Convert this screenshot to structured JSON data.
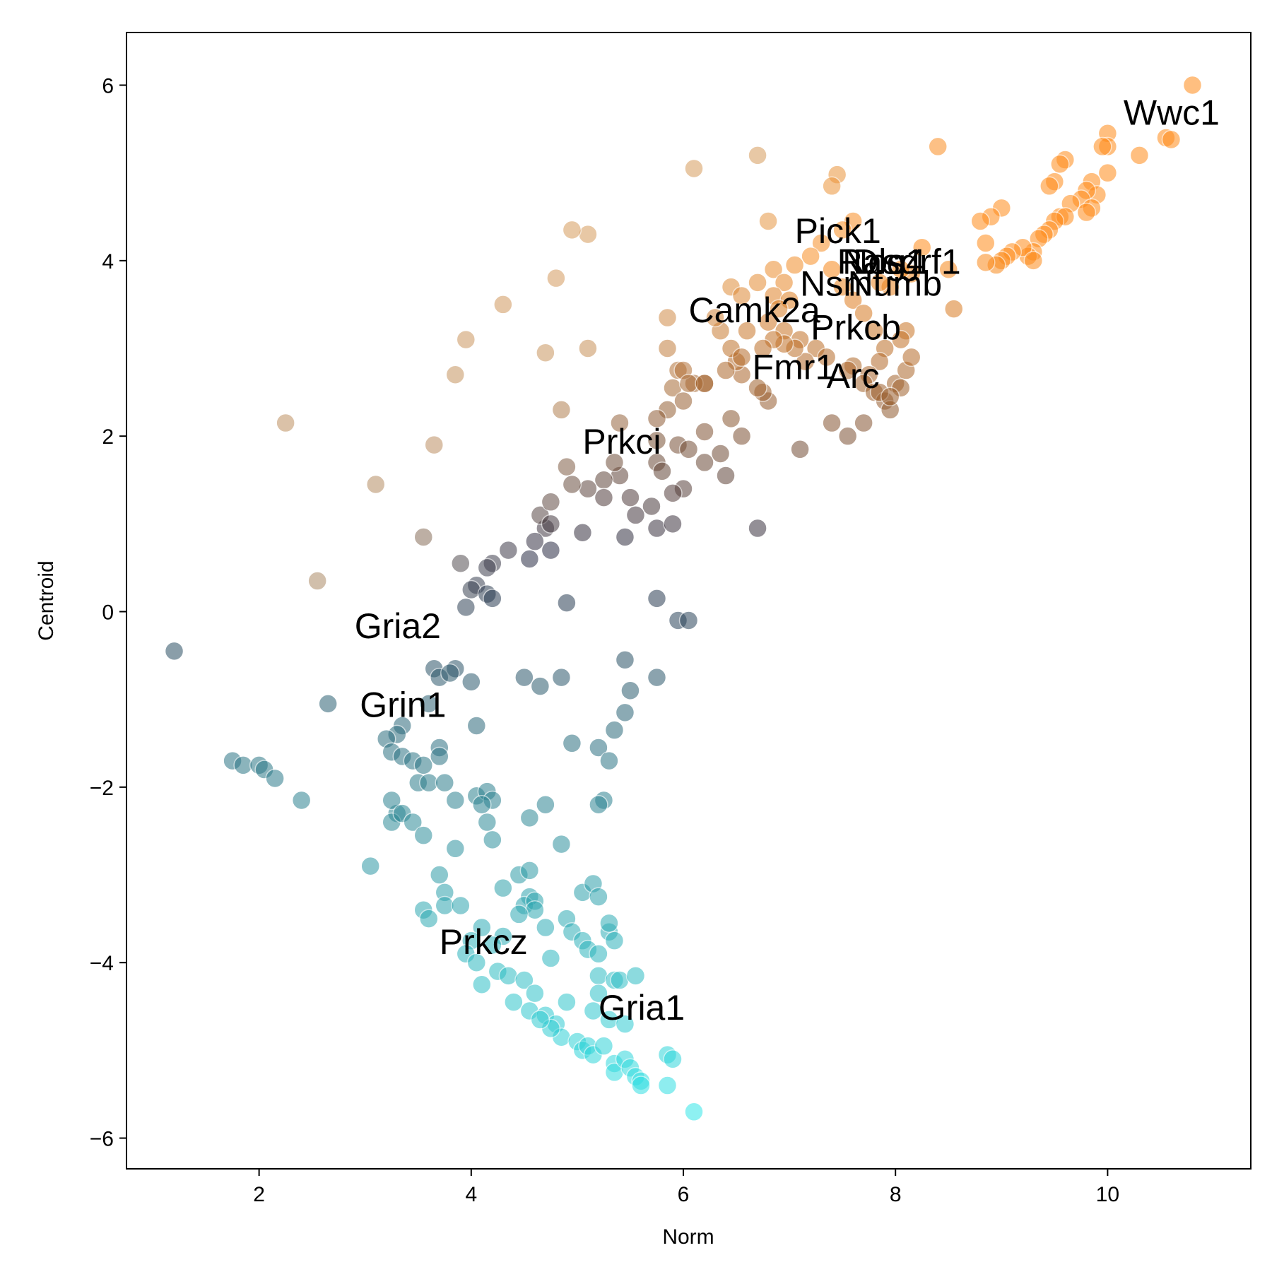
{
  "chart_data": {
    "type": "scatter",
    "xlabel": "Norm",
    "ylabel": "Centroid",
    "xlim": [
      0.75,
      11.35
    ],
    "ylim": [
      -6.35,
      6.6
    ],
    "xticks": [
      2,
      4,
      6,
      8,
      10
    ],
    "yticks": [
      -6,
      -4,
      -2,
      0,
      2,
      4,
      6
    ],
    "xtick_labels": [
      "2",
      "4",
      "6",
      "8",
      "10"
    ],
    "ytick_labels": [
      "−6",
      "−4",
      "−2",
      "0",
      "2",
      "4",
      "6"
    ],
    "grid": false,
    "color_scale": {
      "low": "#33ffff",
      "mid": "#2b2d45",
      "high": "#ff8c1a"
    },
    "annotations": [
      {
        "text": "Wwc1",
        "x": 10.15,
        "y": 5.55
      },
      {
        "text": "Pick1",
        "x": 7.05,
        "y": 4.2
      },
      {
        "text": "Rasgrf1",
        "x": 7.45,
        "y": 3.85
      },
      {
        "text": "Dlg4",
        "x": 7.6,
        "y": 3.85
      },
      {
        "text": "Nos1",
        "x": 7.5,
        "y": 3.85
      },
      {
        "text": "Nsmf",
        "x": 7.1,
        "y": 3.6
      },
      {
        "text": "Numb",
        "x": 7.55,
        "y": 3.6
      },
      {
        "text": "Camk2a",
        "x": 6.05,
        "y": 3.3
      },
      {
        "text": "Prkcb",
        "x": 7.2,
        "y": 3.1
      },
      {
        "text": "Fmr1",
        "x": 6.65,
        "y": 2.65
      },
      {
        "text": "Arc",
        "x": 7.35,
        "y": 2.55
      },
      {
        "text": "Prkci",
        "x": 5.05,
        "y": 1.8
      },
      {
        "text": "Gria2",
        "x": 2.9,
        "y": -0.3
      },
      {
        "text": "Grin1",
        "x": 2.95,
        "y": -1.2
      },
      {
        "text": "Prkcz",
        "x": 3.7,
        "y": -3.9
      },
      {
        "text": "Gria1",
        "x": 5.2,
        "y": -4.65
      }
    ],
    "points": [
      [
        10.8,
        6.0
      ],
      [
        10.0,
        5.45
      ],
      [
        10.55,
        5.4
      ],
      [
        10.6,
        5.38
      ],
      [
        10.3,
        5.2
      ],
      [
        10.0,
        5.3
      ],
      [
        9.95,
        5.3
      ],
      [
        10.0,
        5.0
      ],
      [
        9.6,
        5.15
      ],
      [
        9.55,
        5.1
      ],
      [
        9.85,
        4.9
      ],
      [
        9.9,
        4.75
      ],
      [
        9.8,
        4.8
      ],
      [
        9.75,
        4.7
      ],
      [
        9.85,
        4.6
      ],
      [
        9.8,
        4.55
      ],
      [
        9.65,
        4.65
      ],
      [
        9.5,
        4.9
      ],
      [
        9.45,
        4.85
      ],
      [
        9.55,
        4.5
      ],
      [
        9.6,
        4.5
      ],
      [
        9.5,
        4.45
      ],
      [
        9.45,
        4.35
      ],
      [
        9.4,
        4.3
      ],
      [
        9.35,
        4.25
      ],
      [
        9.3,
        4.1
      ],
      [
        9.25,
        4.05
      ],
      [
        9.2,
        4.15
      ],
      [
        9.1,
        4.1
      ],
      [
        9.05,
        4.05
      ],
      [
        9.0,
        4.0
      ],
      [
        8.95,
        3.95
      ],
      [
        8.85,
        3.98
      ],
      [
        9.0,
        4.6
      ],
      [
        8.9,
        4.5
      ],
      [
        8.8,
        4.45
      ],
      [
        8.85,
        4.2
      ],
      [
        9.3,
        4.0
      ],
      [
        8.55,
        3.45
      ],
      [
        8.5,
        3.9
      ],
      [
        8.4,
        5.3
      ],
      [
        8.25,
        4.15
      ],
      [
        8.15,
        3.85
      ],
      [
        8.05,
        3.9
      ],
      [
        7.95,
        3.7
      ],
      [
        7.85,
        3.75
      ],
      [
        8.1,
        3.2
      ],
      [
        8.05,
        3.1
      ],
      [
        7.6,
        2.8
      ],
      [
        7.55,
        2.75
      ],
      [
        5.75,
        1.7
      ],
      [
        6.2,
        2.6
      ],
      [
        6.1,
        2.6
      ],
      [
        6.45,
        3.7
      ],
      [
        6.8,
        4.45
      ],
      [
        6.85,
        3.9
      ],
      [
        5.1,
        3.0
      ],
      [
        6.7,
        5.2
      ],
      [
        6.1,
        5.05
      ],
      [
        5.1,
        4.3
      ],
      [
        4.95,
        4.35
      ],
      [
        4.8,
        3.8
      ],
      [
        4.3,
        3.5
      ],
      [
        3.95,
        3.1
      ],
      [
        4.7,
        2.95
      ],
      [
        3.85,
        2.7
      ],
      [
        2.25,
        2.15
      ],
      [
        3.65,
        1.9
      ],
      [
        3.1,
        1.45
      ],
      [
        3.55,
        0.85
      ],
      [
        3.9,
        0.55
      ],
      [
        7.45,
        4.98
      ],
      [
        7.4,
        4.85
      ],
      [
        7.6,
        4.45
      ],
      [
        7.5,
        4.35
      ],
      [
        7.3,
        4.2
      ],
      [
        7.2,
        4.05
      ],
      [
        7.05,
        3.95
      ],
      [
        6.95,
        3.75
      ],
      [
        6.85,
        3.6
      ],
      [
        7.0,
        3.55
      ],
      [
        6.9,
        3.45
      ],
      [
        6.8,
        3.3
      ],
      [
        6.95,
        3.2
      ],
      [
        7.1,
        3.1
      ],
      [
        7.25,
        3.0
      ],
      [
        7.35,
        2.9
      ],
      [
        7.15,
        2.85
      ],
      [
        7.05,
        3.0
      ],
      [
        6.95,
        3.05
      ],
      [
        6.85,
        3.1
      ],
      [
        6.75,
        3.0
      ],
      [
        6.6,
        3.2
      ],
      [
        6.55,
        3.6
      ],
      [
        6.7,
        3.75
      ],
      [
        7.4,
        3.9
      ],
      [
        7.5,
        3.7
      ],
      [
        7.6,
        3.55
      ],
      [
        7.7,
        3.4
      ],
      [
        7.8,
        3.2
      ],
      [
        7.9,
        3.0
      ],
      [
        7.85,
        2.85
      ],
      [
        7.75,
        2.7
      ],
      [
        7.7,
        2.6
      ],
      [
        7.8,
        2.5
      ],
      [
        7.9,
        2.4
      ],
      [
        7.95,
        2.3
      ],
      [
        7.85,
        2.5
      ],
      [
        8.0,
        2.6
      ],
      [
        8.1,
        2.75
      ],
      [
        8.15,
        2.9
      ],
      [
        8.05,
        2.55
      ],
      [
        7.95,
        2.45
      ],
      [
        7.7,
        2.15
      ],
      [
        7.4,
        2.15
      ],
      [
        7.55,
        2.0
      ],
      [
        7.1,
        1.85
      ],
      [
        6.8,
        2.4
      ],
      [
        6.75,
        2.5
      ],
      [
        6.7,
        2.55
      ],
      [
        6.55,
        2.7
      ],
      [
        6.5,
        2.85
      ],
      [
        6.45,
        3.0
      ],
      [
        6.35,
        3.2
      ],
      [
        6.3,
        3.35
      ],
      [
        5.85,
        3.35
      ],
      [
        5.85,
        3.0
      ],
      [
        5.95,
        2.75
      ],
      [
        5.9,
        2.55
      ],
      [
        6.0,
        2.75
      ],
      [
        6.05,
        2.6
      ],
      [
        6.4,
        2.75
      ],
      [
        6.55,
        2.9
      ],
      [
        6.2,
        2.6
      ],
      [
        6.0,
        2.4
      ],
      [
        5.85,
        2.3
      ],
      [
        5.75,
        2.2
      ],
      [
        5.75,
        1.95
      ],
      [
        5.95,
        1.9
      ],
      [
        6.05,
        1.85
      ],
      [
        6.2,
        2.05
      ],
      [
        6.35,
        1.8
      ],
      [
        6.45,
        2.2
      ],
      [
        6.55,
        2.0
      ],
      [
        6.4,
        1.55
      ],
      [
        6.2,
        1.7
      ],
      [
        6.0,
        1.4
      ],
      [
        5.9,
        1.35
      ],
      [
        5.8,
        1.6
      ],
      [
        5.7,
        1.2
      ],
      [
        5.55,
        1.1
      ],
      [
        5.5,
        1.3
      ],
      [
        5.4,
        1.55
      ],
      [
        5.4,
        2.15
      ],
      [
        5.35,
        1.7
      ],
      [
        5.25,
        1.5
      ],
      [
        5.25,
        1.3
      ],
      [
        5.1,
        1.4
      ],
      [
        4.95,
        1.45
      ],
      [
        4.9,
        1.65
      ],
      [
        4.85,
        2.3
      ],
      [
        5.05,
        0.9
      ],
      [
        5.45,
        0.85
      ],
      [
        5.75,
        0.95
      ],
      [
        5.9,
        1.0
      ],
      [
        6.7,
        0.95
      ],
      [
        5.75,
        0.15
      ],
      [
        5.95,
        -0.1
      ],
      [
        6.05,
        -0.1
      ],
      [
        4.9,
        0.1
      ],
      [
        4.7,
        0.95
      ],
      [
        4.65,
        1.1
      ],
      [
        4.75,
        1.0
      ],
      [
        4.75,
        1.25
      ],
      [
        4.6,
        0.8
      ],
      [
        4.55,
        0.6
      ],
      [
        4.75,
        0.7
      ],
      [
        4.35,
        0.7
      ],
      [
        4.2,
        0.55
      ],
      [
        4.15,
        0.5
      ],
      [
        4.05,
        0.3
      ],
      [
        4.0,
        0.25
      ],
      [
        4.15,
        0.2
      ],
      [
        4.2,
        0.15
      ],
      [
        3.95,
        0.05
      ],
      [
        2.55,
        0.35
      ],
      [
        1.2,
        -0.45
      ],
      [
        3.85,
        -0.65
      ],
      [
        3.65,
        -0.65
      ],
      [
        3.7,
        -0.75
      ],
      [
        3.8,
        -0.7
      ],
      [
        4.0,
        -0.8
      ],
      [
        4.5,
        -0.75
      ],
      [
        4.85,
        -0.75
      ],
      [
        4.65,
        -0.85
      ],
      [
        5.45,
        -0.55
      ],
      [
        5.75,
        -0.75
      ],
      [
        5.5,
        -0.9
      ],
      [
        5.45,
        -1.15
      ],
      [
        5.35,
        -1.35
      ],
      [
        4.05,
        -1.3
      ],
      [
        3.6,
        -1.05
      ],
      [
        2.65,
        -1.05
      ],
      [
        3.35,
        -1.3
      ],
      [
        3.3,
        -1.4
      ],
      [
        3.2,
        -1.45
      ],
      [
        3.25,
        -1.6
      ],
      [
        3.35,
        -1.65
      ],
      [
        3.45,
        -1.7
      ],
      [
        3.55,
        -1.75
      ],
      [
        3.5,
        -1.95
      ],
      [
        3.6,
        -1.95
      ],
      [
        3.75,
        -1.95
      ],
      [
        3.85,
        -2.15
      ],
      [
        3.7,
        -1.55
      ],
      [
        3.7,
        -1.65
      ],
      [
        4.05,
        -2.1
      ],
      [
        4.15,
        -2.05
      ],
      [
        4.2,
        -2.15
      ],
      [
        4.1,
        -2.2
      ],
      [
        4.15,
        -2.4
      ],
      [
        4.2,
        -2.6
      ],
      [
        3.3,
        -2.3
      ],
      [
        3.25,
        -2.15
      ],
      [
        3.25,
        -2.4
      ],
      [
        3.35,
        -2.3
      ],
      [
        3.45,
        -2.4
      ],
      [
        3.55,
        -2.55
      ],
      [
        3.85,
        -2.7
      ],
      [
        3.05,
        -2.9
      ],
      [
        3.7,
        -3.0
      ],
      [
        3.75,
        -3.2
      ],
      [
        3.75,
        -3.35
      ],
      [
        3.9,
        -3.35
      ],
      [
        3.55,
        -3.4
      ],
      [
        3.6,
        -3.5
      ],
      [
        1.75,
        -1.7
      ],
      [
        1.85,
        -1.75
      ],
      [
        2.0,
        -1.75
      ],
      [
        2.05,
        -1.8
      ],
      [
        2.15,
        -1.9
      ],
      [
        2.4,
        -2.15
      ],
      [
        4.55,
        -2.35
      ],
      [
        4.7,
        -2.2
      ],
      [
        4.85,
        -2.65
      ],
      [
        4.95,
        -1.5
      ],
      [
        5.2,
        -1.55
      ],
      [
        5.3,
        -1.7
      ],
      [
        5.25,
        -2.15
      ],
      [
        5.2,
        -2.2
      ],
      [
        4.3,
        -3.15
      ],
      [
        4.45,
        -3.0
      ],
      [
        4.55,
        -2.95
      ],
      [
        4.55,
        -3.25
      ],
      [
        4.5,
        -3.35
      ],
      [
        4.6,
        -3.3
      ],
      [
        4.6,
        -3.4
      ],
      [
        4.45,
        -3.45
      ],
      [
        4.7,
        -3.6
      ],
      [
        4.3,
        -3.7
      ],
      [
        4.2,
        -3.8
      ],
      [
        4.1,
        -3.6
      ],
      [
        4.0,
        -3.75
      ],
      [
        3.95,
        -3.9
      ],
      [
        4.05,
        -4.0
      ],
      [
        4.25,
        -4.1
      ],
      [
        4.1,
        -4.25
      ],
      [
        4.35,
        -4.15
      ],
      [
        4.5,
        -4.2
      ],
      [
        4.6,
        -4.35
      ],
      [
        4.4,
        -4.45
      ],
      [
        4.55,
        -4.55
      ],
      [
        4.7,
        -4.6
      ],
      [
        4.8,
        -4.7
      ],
      [
        4.85,
        -4.85
      ],
      [
        4.75,
        -4.75
      ],
      [
        4.65,
        -4.65
      ],
      [
        4.9,
        -4.45
      ],
      [
        4.75,
        -3.95
      ],
      [
        4.9,
        -3.5
      ],
      [
        4.95,
        -3.65
      ],
      [
        5.05,
        -3.75
      ],
      [
        5.1,
        -3.85
      ],
      [
        5.2,
        -3.9
      ],
      [
        5.3,
        -3.65
      ],
      [
        5.35,
        -3.75
      ],
      [
        5.3,
        -3.55
      ],
      [
        5.05,
        -3.2
      ],
      [
        5.15,
        -3.1
      ],
      [
        5.2,
        -3.25
      ],
      [
        5.2,
        -4.15
      ],
      [
        5.35,
        -4.2
      ],
      [
        5.4,
        -4.2
      ],
      [
        5.55,
        -4.15
      ],
      [
        5.2,
        -4.35
      ],
      [
        5.15,
        -4.55
      ],
      [
        5.3,
        -4.65
      ],
      [
        5.45,
        -4.7
      ],
      [
        5.0,
        -4.9
      ],
      [
        5.05,
        -5.0
      ],
      [
        5.1,
        -4.95
      ],
      [
        5.15,
        -5.05
      ],
      [
        5.25,
        -4.95
      ],
      [
        5.35,
        -5.15
      ],
      [
        5.35,
        -5.25
      ],
      [
        5.45,
        -5.1
      ],
      [
        5.5,
        -5.2
      ],
      [
        5.55,
        -5.3
      ],
      [
        5.6,
        -5.35
      ],
      [
        5.6,
        -5.4
      ],
      [
        5.85,
        -5.05
      ],
      [
        5.9,
        -5.1
      ],
      [
        5.85,
        -5.4
      ],
      [
        6.1,
        -5.7
      ]
    ]
  }
}
